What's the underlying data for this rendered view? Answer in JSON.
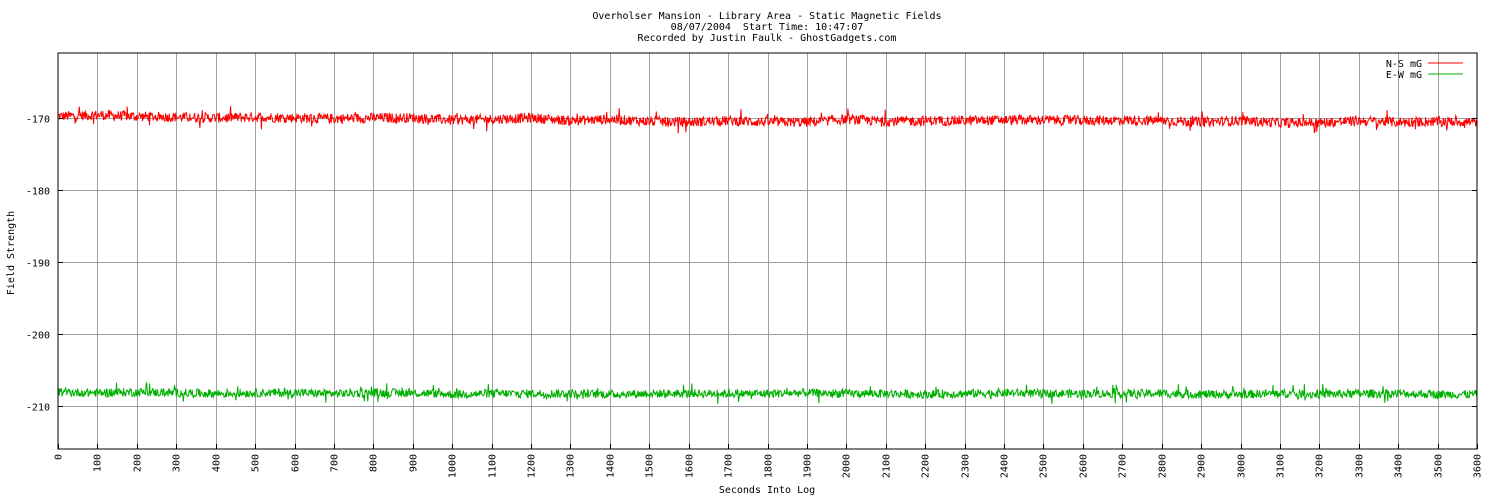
{
  "chart_data": {
    "type": "line",
    "title": "Overholser Mansion - Library Area - Static Magnetic Fields",
    "subtitle": "08/07/2004  Start Time: 10:47:07",
    "credit": "Recorded by Justin Faulk - GhostGadgets.com",
    "xlabel": "Seconds Into Log",
    "ylabel": "Field Strength",
    "xlim": [
      0,
      3600
    ],
    "ylim": [
      -216,
      -161
    ],
    "x_ticks": [
      0,
      100,
      200,
      300,
      400,
      500,
      600,
      700,
      800,
      900,
      1000,
      1100,
      1200,
      1300,
      1400,
      1500,
      1600,
      1700,
      1800,
      1900,
      2000,
      2100,
      2200,
      2300,
      2400,
      2500,
      2600,
      2700,
      2800,
      2900,
      3000,
      3100,
      3200,
      3300,
      3400,
      3500,
      3600
    ],
    "y_ticks": [
      -170,
      -180,
      -190,
      -200,
      -210
    ],
    "grid": true,
    "legend_position": "top-right",
    "series": [
      {
        "name": "N-S mG",
        "color": "#ff0000",
        "noise": 0.7,
        "x": [
          0,
          100,
          200,
          300,
          400,
          500,
          600,
          700,
          800,
          900,
          1000,
          1100,
          1200,
          1300,
          1400,
          1500,
          1600,
          1700,
          1800,
          1900,
          2000,
          2100,
          2200,
          2300,
          2400,
          2500,
          2600,
          2700,
          2800,
          2900,
          3000,
          3100,
          3200,
          3300,
          3400,
          3500,
          3600
        ],
        "values": [
          -169.8,
          -169.6,
          -169.8,
          -169.9,
          -170.0,
          -169.9,
          -170.0,
          -170.1,
          -170.0,
          -170.0,
          -170.3,
          -170.2,
          -170.0,
          -170.4,
          -170.2,
          -170.5,
          -170.6,
          -170.4,
          -170.6,
          -170.6,
          -170.2,
          -170.5,
          -170.4,
          -170.4,
          -170.3,
          -170.3,
          -170.4,
          -170.3,
          -170.4,
          -170.6,
          -170.4,
          -170.7,
          -170.7,
          -170.4,
          -170.6,
          -170.5,
          -170.6
        ]
      },
      {
        "name": "E-W mG",
        "color": "#00b000",
        "noise": 0.6,
        "x": [
          0,
          100,
          200,
          300,
          400,
          500,
          600,
          700,
          800,
          900,
          1000,
          1100,
          1200,
          1300,
          1400,
          1500,
          1600,
          1700,
          1800,
          1900,
          2000,
          2100,
          2200,
          2300,
          2400,
          2500,
          2600,
          2700,
          2800,
          2900,
          3000,
          3100,
          3200,
          3300,
          3400,
          3500,
          3600
        ],
        "values": [
          -208.1,
          -208.2,
          -208.1,
          -208.2,
          -208.3,
          -208.2,
          -208.2,
          -208.3,
          -208.2,
          -208.2,
          -208.4,
          -208.3,
          -208.3,
          -208.3,
          -208.4,
          -208.3,
          -208.3,
          -208.3,
          -208.3,
          -208.2,
          -208.3,
          -208.3,
          -208.4,
          -208.3,
          -208.2,
          -208.3,
          -208.3,
          -208.3,
          -208.3,
          -208.4,
          -208.4,
          -208.3,
          -208.4,
          -208.3,
          -208.3,
          -208.4,
          -208.4
        ]
      }
    ]
  }
}
